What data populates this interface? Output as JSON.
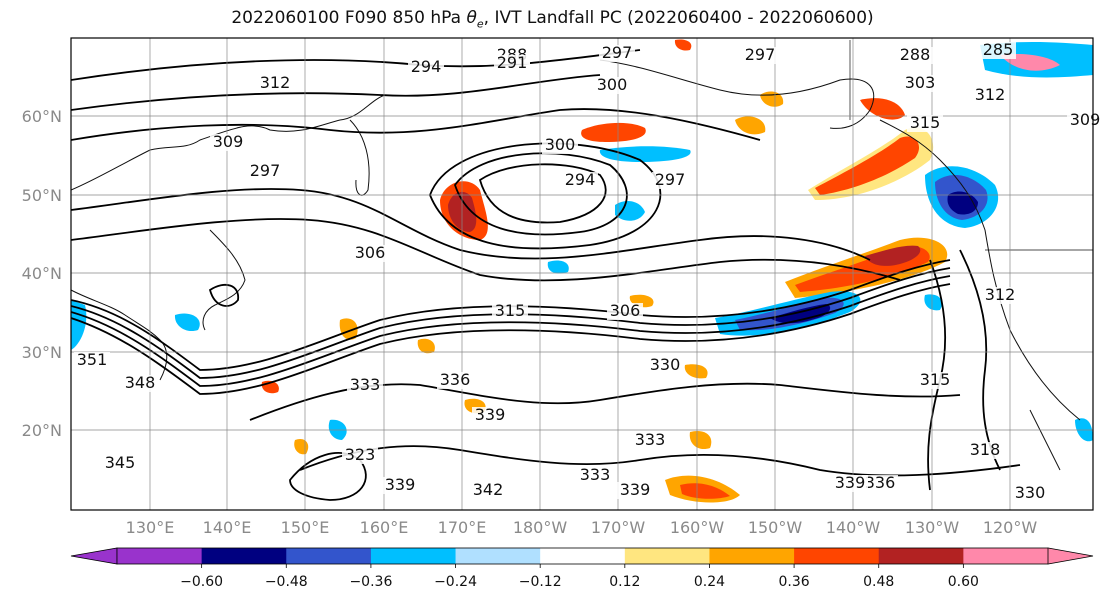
{
  "title": {
    "prefix": "2022060100 F090 850 hPa ",
    "theta": "θ",
    "theta_sub": "e",
    "suffix": ", IVT Landfall PC (2022060400 - 2022060600)"
  },
  "axes": {
    "lat_labels": [
      "60°N",
      "50°N",
      "40°N",
      "30°N",
      "20°N"
    ],
    "lon_labels": [
      "130°E",
      "140°E",
      "150°E",
      "160°E",
      "170°E",
      "180°W",
      "170°W",
      "160°W",
      "150°W",
      "140°W",
      "130°W",
      "120°W"
    ],
    "grid": true
  },
  "contour_labels": [
    "288",
    "291",
    "294",
    "297",
    "300",
    "294",
    "297",
    "312",
    "309",
    "297",
    "306",
    "315",
    "306",
    "300",
    "303",
    "312",
    "309",
    "315",
    "351",
    "348",
    "336",
    "333",
    "330",
    "333",
    "339",
    "342",
    "339",
    "333",
    "323",
    "339",
    "336",
    "315",
    "318",
    "330",
    "339",
    "345",
    "285",
    "288",
    "297",
    "312"
  ],
  "colorbar": {
    "colors": [
      "#9933cc",
      "#000080",
      "#3355cc",
      "#00bfff",
      "#b0e0ff",
      "#ffffff",
      "#ffe680",
      "#ffa500",
      "#ff4500",
      "#b22222",
      "#ff88aa"
    ],
    "tick_labels": [
      "−0.60",
      "−0.48",
      "−0.36",
      "−0.24",
      "−0.12",
      "0.12",
      "0.24",
      "0.36",
      "0.48",
      "0.60"
    ],
    "extend": "both"
  }
}
